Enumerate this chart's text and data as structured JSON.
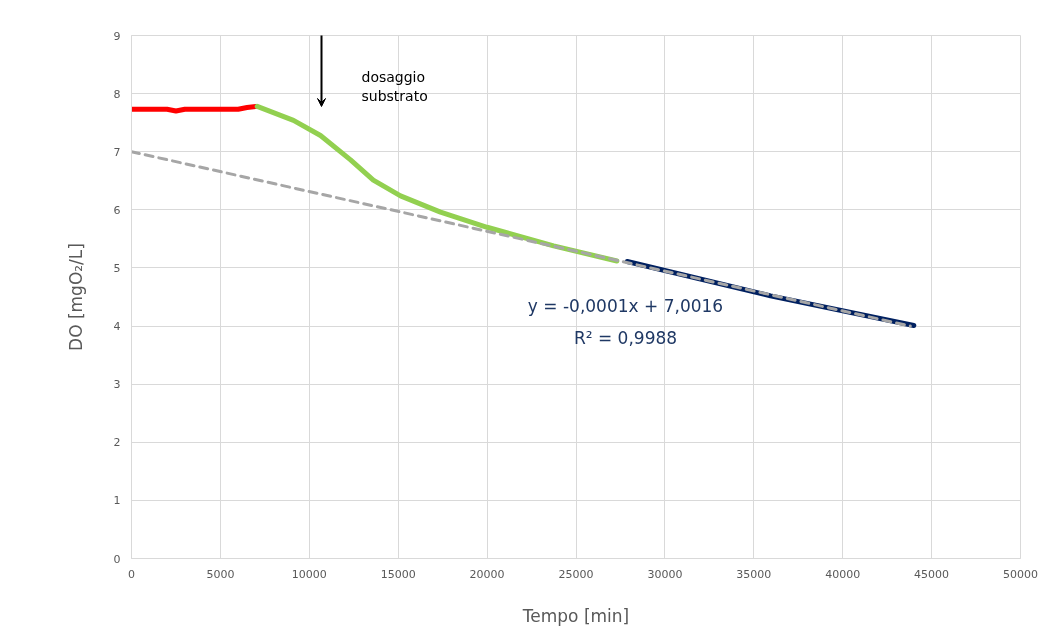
{
  "chart_data": {
    "type": "line",
    "xlabel": "Tempo [min]",
    "ylabel": "DO [mgO₂/L]",
    "xlim": [
      0,
      50000
    ],
    "xticks": [
      0,
      5000,
      10000,
      15000,
      20000,
      25000,
      30000,
      35000,
      40000,
      45000,
      50000
    ],
    "ylim": [
      0,
      9
    ],
    "yticks": [
      0,
      1,
      2,
      3,
      4,
      5,
      6,
      7,
      8,
      9
    ],
    "grid": true,
    "marker": "none",
    "series": [
      {
        "color": "#ff0000",
        "line_style": "solid",
        "x": [
          0,
          2000,
          2500,
          3000,
          6000,
          6500,
          7000
        ],
        "values": [
          7.73,
          7.73,
          7.7,
          7.73,
          7.73,
          7.76,
          7.78
        ]
      },
      {
        "color": "#92d050",
        "line_style": "solid",
        "x": [
          7070,
          9110,
          10630,
          12320,
          13600,
          15130,
          17380,
          20000,
          23740,
          27300
        ],
        "values": [
          7.78,
          7.54,
          7.28,
          6.86,
          6.51,
          6.24,
          5.96,
          5.7,
          5.38,
          5.12
        ]
      },
      {
        "color": "#002060",
        "line_style": "solid",
        "x": [
          27880,
          35940,
          44000
        ],
        "values": [
          5.11,
          4.52,
          4.01
        ]
      },
      {
        "type": "line",
        "color": "#a6a6a6",
        "line_style": "dashed",
        "x": [
          0,
          43800
        ],
        "values": [
          7.0,
          4.0
        ]
      }
    ],
    "annotations": [
      "dosaggio substrato",
      "y = -0,0001x + 7,0016",
      "R² = 0,9988"
    ]
  }
}
